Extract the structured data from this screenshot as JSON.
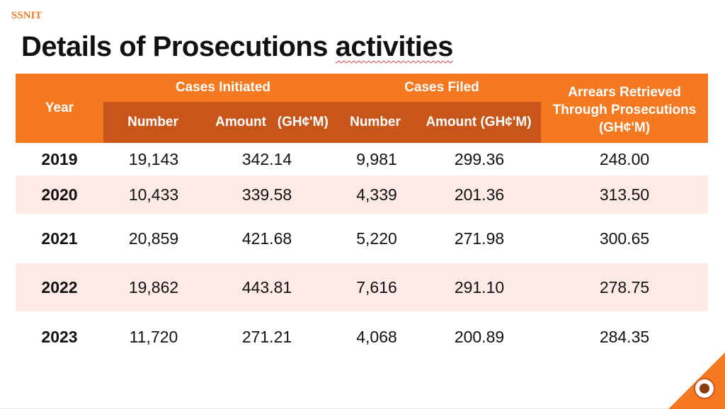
{
  "brand": "SSNIT",
  "title_main": "Details of Prosecutions ",
  "title_underlined": "activities",
  "colors": {
    "accent": "#f47920",
    "accent_dark": "#c8551a",
    "row_alt": "#fdeae6"
  },
  "headers": {
    "year": "Year",
    "cases_initiated": "Cases Initiated",
    "cases_filed": "Cases Filed",
    "arrears": "Arrears Retrieved Through Prosecutions (GH¢'M)",
    "ci_number": "Number",
    "ci_amount": "Amount   (GH¢'M)",
    "cf_number": "Number",
    "cf_amount": "Amount (GH¢'M)"
  },
  "rows": [
    {
      "year": "2019",
      "ci_number": "19,143",
      "ci_amount": "342.14",
      "cf_number": "9,981",
      "cf_amount": "299.36",
      "arrears": "248.00"
    },
    {
      "year": "2020",
      "ci_number": "10,433",
      "ci_amount": "339.58",
      "cf_number": "4,339",
      "cf_amount": "201.36",
      "arrears": "313.50"
    },
    {
      "year": "2021",
      "ci_number": "20,859",
      "ci_amount": "421.68",
      "cf_number": "5,220",
      "cf_amount": "271.98",
      "arrears": "300.65"
    },
    {
      "year": "2022",
      "ci_number": "19,862",
      "ci_amount": "443.81",
      "cf_number": "7,616",
      "cf_amount": "291.10",
      "arrears": "278.75"
    },
    {
      "year": "2023",
      "ci_number": "11,720",
      "ci_amount": "271.21",
      "cf_number": "4,068",
      "cf_amount": "200.89",
      "arrears": "284.35"
    }
  ]
}
